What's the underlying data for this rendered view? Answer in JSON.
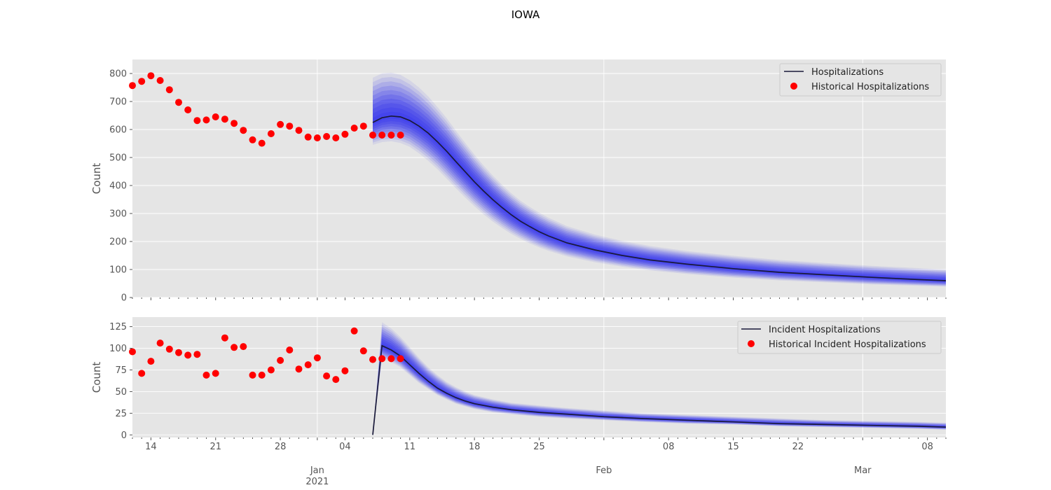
{
  "figure": {
    "title": "IOWA"
  },
  "chart_data": [
    {
      "type": "line",
      "panel": "top",
      "ylabel": "Count",
      "ylim": [
        0,
        850
      ],
      "yticks": [
        0,
        100,
        200,
        300,
        400,
        500,
        600,
        700,
        800
      ],
      "grid": true,
      "legend": {
        "placement": "top-right",
        "entries": [
          "Hospitalizations",
          "Historical Hospitalizations"
        ]
      },
      "historical": {
        "name": "Historical Hospitalizations",
        "color": "#ff0000",
        "x": [
          "2020-12-12",
          "2020-12-13",
          "2020-12-14",
          "2020-12-15",
          "2020-12-16",
          "2020-12-17",
          "2020-12-18",
          "2020-12-19",
          "2020-12-20",
          "2020-12-21",
          "2020-12-22",
          "2020-12-23",
          "2020-12-24",
          "2020-12-25",
          "2020-12-26",
          "2020-12-27",
          "2020-12-28",
          "2020-12-29",
          "2020-12-30",
          "2020-12-31",
          "2021-01-01",
          "2021-01-02",
          "2021-01-03",
          "2021-01-04",
          "2021-01-05",
          "2021-01-06",
          "2021-01-07",
          "2021-01-08",
          "2021-01-09",
          "2021-01-10"
        ],
        "y": [
          757,
          772,
          792,
          775,
          742,
          697,
          670,
          632,
          634,
          645,
          637,
          622,
          597,
          563,
          551,
          585,
          618,
          612,
          597,
          573,
          570,
          575,
          570,
          583,
          605,
          612,
          580,
          580,
          580,
          580
        ]
      },
      "forecast": {
        "name": "Hospitalizations",
        "color": "#1a1a3a",
        "band_color": "#3333ee",
        "x": [
          "2021-01-07",
          "2021-01-08",
          "2021-01-09",
          "2021-01-10",
          "2021-01-11",
          "2021-01-12",
          "2021-01-13",
          "2021-01-14",
          "2021-01-15",
          "2021-01-16",
          "2021-01-17",
          "2021-01-18",
          "2021-01-19",
          "2021-01-20",
          "2021-01-21",
          "2021-01-22",
          "2021-01-23",
          "2021-01-24",
          "2021-01-25",
          "2021-01-26",
          "2021-01-28",
          "2021-01-31",
          "2021-02-03",
          "2021-02-06",
          "2021-02-10",
          "2021-02-15",
          "2021-02-20",
          "2021-02-25",
          "2021-03-02",
          "2021-03-07",
          "2021-03-10"
        ],
        "y": [
          625,
          642,
          648,
          645,
          632,
          612,
          587,
          556,
          522,
          485,
          449,
          413,
          380,
          349,
          321,
          295,
          272,
          253,
          235,
          220,
          195,
          170,
          150,
          134,
          119,
          103,
          90,
          81,
          72,
          64,
          60
        ],
        "lower": [
          545,
          555,
          558,
          552,
          538,
          515,
          488,
          458,
          424,
          390,
          357,
          326,
          297,
          271,
          248,
          227,
          209,
          193,
          179,
          167,
          147,
          126,
          110,
          97,
          84,
          71,
          61,
          54,
          47,
          42,
          39
        ],
        "upper": [
          785,
          800,
          803,
          795,
          776,
          750,
          718,
          680,
          640,
          595,
          552,
          510,
          471,
          435,
          402,
          372,
          345,
          323,
          303,
          285,
          255,
          225,
          202,
          184,
          166,
          149,
          134,
          123,
          113,
          105,
          100
        ]
      }
    },
    {
      "type": "line",
      "panel": "bottom",
      "ylabel": "Count",
      "ylim": [
        -3,
        136
      ],
      "yticks": [
        0,
        25,
        50,
        75,
        100,
        125
      ],
      "xticks": [
        "14",
        "21",
        "28",
        "04",
        "11",
        "18",
        "25",
        "Feb",
        "08",
        "15",
        "22",
        "Mar",
        "08"
      ],
      "xtick_year": "2021",
      "xtick_jan": "Jan",
      "xlim": [
        "2020-12-12",
        "2021-03-10"
      ],
      "grid": true,
      "legend": {
        "placement": "top-right",
        "entries": [
          "Incident Hospitalizations",
          "Historical Incident Hospitalizations"
        ]
      },
      "historical": {
        "name": "Historical Incident Hospitalizations",
        "color": "#ff0000",
        "x": [
          "2020-12-12",
          "2020-12-13",
          "2020-12-14",
          "2020-12-15",
          "2020-12-16",
          "2020-12-17",
          "2020-12-18",
          "2020-12-19",
          "2020-12-20",
          "2020-12-21",
          "2020-12-22",
          "2020-12-23",
          "2020-12-24",
          "2020-12-25",
          "2020-12-26",
          "2020-12-27",
          "2020-12-28",
          "2020-12-29",
          "2020-12-30",
          "2020-12-31",
          "2021-01-01",
          "2021-01-02",
          "2021-01-03",
          "2021-01-04",
          "2021-01-05",
          "2021-01-06",
          "2021-01-07",
          "2021-01-08",
          "2021-01-09",
          "2021-01-10"
        ],
        "y": [
          96,
          71,
          85,
          106,
          99,
          95,
          92,
          93,
          69,
          71,
          112,
          101,
          102,
          69,
          69,
          75,
          86,
          98,
          76,
          81,
          89,
          68,
          64,
          74,
          120,
          97,
          87,
          88,
          88,
          88
        ]
      },
      "forecast": {
        "name": "Incident Hospitalizations",
        "color": "#1a1a3a",
        "band_color": "#3333ee",
        "x": [
          "2021-01-07",
          "2021-01-08",
          "2021-01-09",
          "2021-01-10",
          "2021-01-11",
          "2021-01-12",
          "2021-01-13",
          "2021-01-14",
          "2021-01-15",
          "2021-01-16",
          "2021-01-17",
          "2021-01-18",
          "2021-01-20",
          "2021-01-22",
          "2021-01-25",
          "2021-01-28",
          "2021-02-01",
          "2021-02-05",
          "2021-02-10",
          "2021-02-15",
          "2021-02-20",
          "2021-02-25",
          "2021-03-02",
          "2021-03-07",
          "2021-03-10"
        ],
        "y": [
          0,
          103,
          98,
          91,
          81,
          71,
          62,
          54,
          48,
          43,
          39,
          36,
          32,
          29,
          26,
          24,
          21,
          19,
          17,
          15,
          13,
          12,
          11,
          10,
          9
        ],
        "lower": [
          0,
          88,
          84,
          78,
          69,
          60,
          53,
          46,
          41,
          36,
          33,
          30,
          26,
          24,
          21,
          19,
          17,
          15,
          13,
          12,
          10,
          9,
          8,
          7,
          6
        ],
        "upper": [
          0,
          130,
          123,
          113,
          101,
          89,
          78,
          69,
          61,
          55,
          50,
          46,
          41,
          37,
          34,
          31,
          28,
          25,
          23,
          21,
          19,
          17,
          16,
          15,
          14
        ]
      }
    }
  ]
}
